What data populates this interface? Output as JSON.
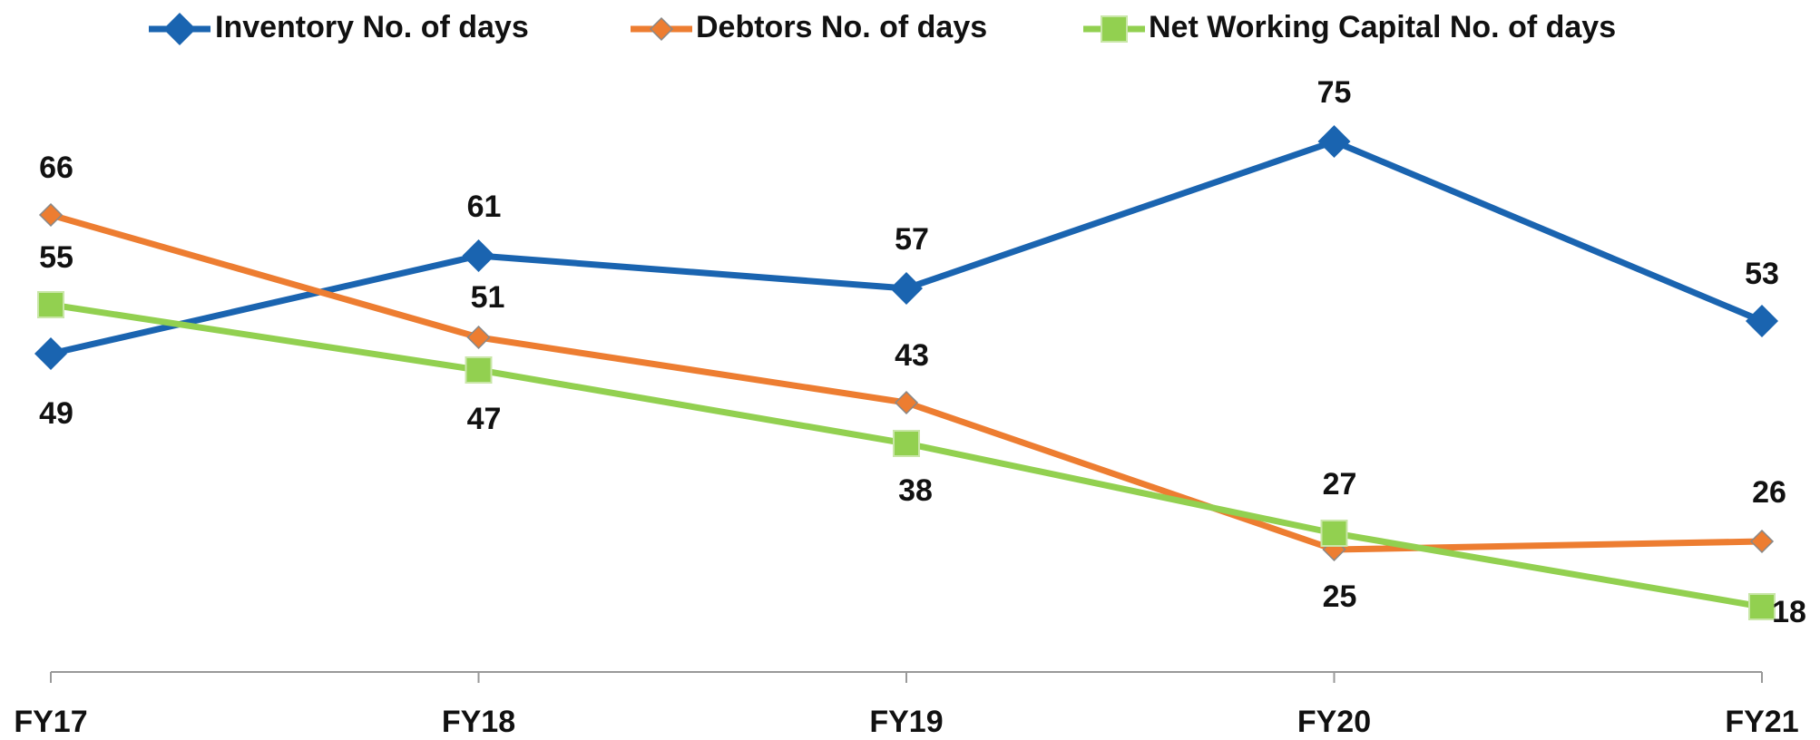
{
  "chart_data": {
    "type": "line",
    "categories": [
      "FY17",
      "FY18",
      "FY19",
      "FY20",
      "FY21"
    ],
    "series": [
      {
        "name": "Inventory No. of days",
        "color": "#1a64b0",
        "values": [
          49,
          61,
          57,
          75,
          53
        ]
      },
      {
        "name": "Debtors No. of days",
        "color": "#ed7d31",
        "values": [
          66,
          51,
          43,
          25,
          26
        ]
      },
      {
        "name": "Net Working Capital No. of days",
        "color": "#92d050",
        "values": [
          55,
          47,
          38,
          27,
          18
        ]
      }
    ],
    "ylim": [
      10,
      80
    ],
    "legend": "top"
  }
}
